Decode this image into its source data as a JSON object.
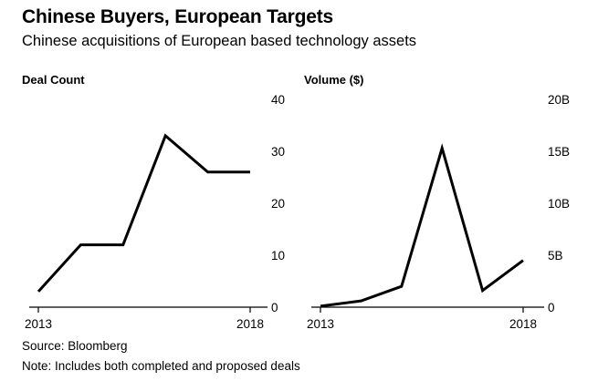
{
  "header": {
    "title": "Chinese Buyers, European Targets",
    "subtitle": "Chinese acquisitions of European based technology assets"
  },
  "footer": {
    "source": "Source: Bloomberg",
    "note": "Note: Includes both completed and proposed deals"
  },
  "colors": {
    "line": "#000000",
    "axis": "#000000",
    "text": "#000000",
    "background": "#ffffff"
  },
  "chart_data": [
    {
      "type": "line",
      "title": "Deal Count",
      "x": [
        2013,
        2014,
        2015,
        2016,
        2017,
        2018
      ],
      "x_tick_labels": [
        "2013",
        "2018"
      ],
      "y_tick_labels": [
        "0",
        "10",
        "20",
        "30",
        "40"
      ],
      "y_ticks": [
        0,
        10,
        20,
        30,
        40
      ],
      "ylim": [
        0,
        40
      ],
      "series": [
        {
          "values": [
            3,
            12,
            12,
            33,
            26,
            26
          ]
        }
      ],
      "grid": false,
      "y_axis_position": "right"
    },
    {
      "type": "line",
      "title": "Volume ($)",
      "x": [
        2013,
        2014,
        2015,
        2016,
        2017,
        2018
      ],
      "x_tick_labels": [
        "2013",
        "2018"
      ],
      "y_tick_labels": [
        "0",
        "5B",
        "10B",
        "15B",
        "20B"
      ],
      "y_ticks": [
        0,
        5,
        10,
        15,
        20
      ],
      "ylim": [
        0,
        20
      ],
      "y_unit": "B",
      "series": [
        {
          "values": [
            0.1,
            0.6,
            2.0,
            15.3,
            1.6,
            4.5
          ]
        }
      ],
      "grid": false,
      "y_axis_position": "right"
    }
  ]
}
